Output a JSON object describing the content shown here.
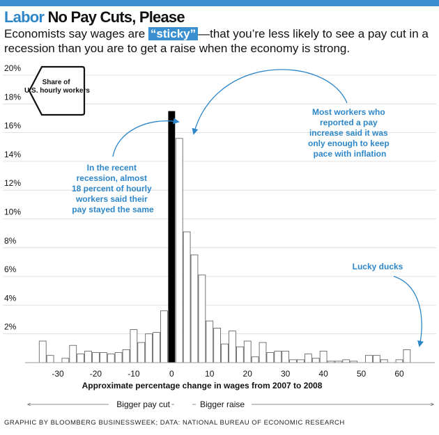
{
  "header": {
    "section": "Labor",
    "title": "No Pay Cuts, Please"
  },
  "dek": {
    "before": "Economists say wages are ",
    "highlight": "“sticky”",
    "after": "—that you’re less likely to see a pay cut in a recession than you are to get a raise when the economy is strong."
  },
  "colors": {
    "accent": "#3a8fd0",
    "annotation": "#2d86c8",
    "highlight_bar": "#000000",
    "bar_outline": "#555555"
  },
  "chart_data": {
    "type": "bar",
    "xlabel": "Approximate percentage change in wages from 2007 to 2008",
    "ylabel": "Share of U.S. hourly workers",
    "xlim": [
      -39,
      69
    ],
    "ylim": [
      0,
      20
    ],
    "xticks": [
      -30,
      -20,
      -10,
      0,
      10,
      20,
      30,
      40,
      50,
      60
    ],
    "yticks": [
      2,
      4,
      6,
      8,
      10,
      12,
      14,
      16,
      18,
      20
    ],
    "ytick_suffix": "%",
    "grid": true,
    "bars": [
      {
        "x": -34,
        "value": 1.5
      },
      {
        "x": -32,
        "value": 0.5
      },
      {
        "x": -28,
        "value": 0.3
      },
      {
        "x": -26,
        "value": 1.2
      },
      {
        "x": -24,
        "value": 0.6
      },
      {
        "x": -22,
        "value": 0.8
      },
      {
        "x": -20,
        "value": 0.7
      },
      {
        "x": -18,
        "value": 0.7
      },
      {
        "x": -16,
        "value": 0.6
      },
      {
        "x": -14,
        "value": 0.7
      },
      {
        "x": -12,
        "value": 0.9
      },
      {
        "x": -10,
        "value": 2.3
      },
      {
        "x": -8,
        "value": 1.4
      },
      {
        "x": -6,
        "value": 2.0
      },
      {
        "x": -4,
        "value": 2.1
      },
      {
        "x": -2,
        "value": 3.6
      },
      {
        "x": 0,
        "value": 17.5,
        "highlight": true
      },
      {
        "x": 2,
        "value": 15.6
      },
      {
        "x": 4,
        "value": 9.1
      },
      {
        "x": 6,
        "value": 7.5
      },
      {
        "x": 8,
        "value": 6.1
      },
      {
        "x": 10,
        "value": 2.9
      },
      {
        "x": 12,
        "value": 2.4
      },
      {
        "x": 14,
        "value": 1.3
      },
      {
        "x": 16,
        "value": 2.2
      },
      {
        "x": 18,
        "value": 1.1
      },
      {
        "x": 20,
        "value": 1.5
      },
      {
        "x": 22,
        "value": 0.4
      },
      {
        "x": 24,
        "value": 1.4
      },
      {
        "x": 26,
        "value": 0.7
      },
      {
        "x": 28,
        "value": 0.8
      },
      {
        "x": 30,
        "value": 0.8
      },
      {
        "x": 32,
        "value": 0.2
      },
      {
        "x": 34,
        "value": 0.2
      },
      {
        "x": 36,
        "value": 0.6
      },
      {
        "x": 38,
        "value": 0.3
      },
      {
        "x": 40,
        "value": 0.8
      },
      {
        "x": 42,
        "value": 0.1
      },
      {
        "x": 44,
        "value": 0.1
      },
      {
        "x": 46,
        "value": 0.2
      },
      {
        "x": 48,
        "value": 0.1
      },
      {
        "x": 52,
        "value": 0.5
      },
      {
        "x": 54,
        "value": 0.5
      },
      {
        "x": 56,
        "value": 0.2
      },
      {
        "x": 60,
        "value": 0.2
      },
      {
        "x": 62,
        "value": 0.9
      }
    ],
    "annotations": {
      "recession": [
        "In the recent",
        "recession, almost",
        "18 percent of hourly",
        "workers said their",
        "pay stayed the same"
      ],
      "inflation": [
        "Most workers who",
        "reported a pay",
        "increase said it was",
        "only enough to keep",
        "pace with inflation"
      ],
      "lucky": [
        "Lucky ducks"
      ]
    },
    "direction_labels": {
      "left": "Bigger pay cut",
      "right": "Bigger raise"
    }
  },
  "credit": "GRAPHIC BY BLOOMBERG BUSINESSWEEK; DATA: NATIONAL BUREAU OF ECONOMIC RESEARCH"
}
